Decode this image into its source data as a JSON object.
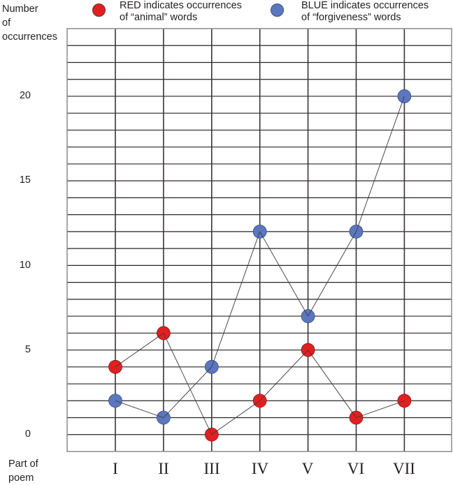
{
  "chart_data": {
    "type": "line",
    "title": "",
    "ylabel": "Number of occurrences",
    "xlabel": "Part of poem",
    "categories": [
      "I",
      "II",
      "III",
      "IV",
      "V",
      "VI",
      "VII"
    ],
    "y_ticks": [
      0,
      5,
      10,
      15,
      20
    ],
    "ylim": [
      -1,
      24
    ],
    "grid": true,
    "legend_position": "top",
    "series": [
      {
        "name": "RED indicates occurrences of “animal” words",
        "color": "#e02020",
        "values": [
          4,
          6,
          0,
          2,
          5,
          1,
          2
        ]
      },
      {
        "name": "BLUE indicates occurrences of “forgiveness” words",
        "color": "#5b77bd",
        "values": [
          2,
          1,
          4,
          12,
          7,
          12,
          20
        ]
      }
    ]
  },
  "axis": {
    "y_title_lines": [
      "Number",
      "of",
      "occurrences"
    ],
    "x_title_lines": [
      "Part of",
      "poem"
    ],
    "y_tick_labels": [
      "20",
      "15",
      "10",
      "5",
      "0"
    ]
  },
  "legend": {
    "red": {
      "line1": "RED indicates occurrences",
      "line2": "of “animal” words",
      "color": "#e02020"
    },
    "blue": {
      "line1": "BLUE indicates occurrences",
      "line2": "of “forgiveness” words",
      "color": "#5b77bd"
    }
  },
  "x_tick_labels": [
    "I",
    "II",
    "III",
    "IV",
    "V",
    "VI",
    "VII"
  ]
}
